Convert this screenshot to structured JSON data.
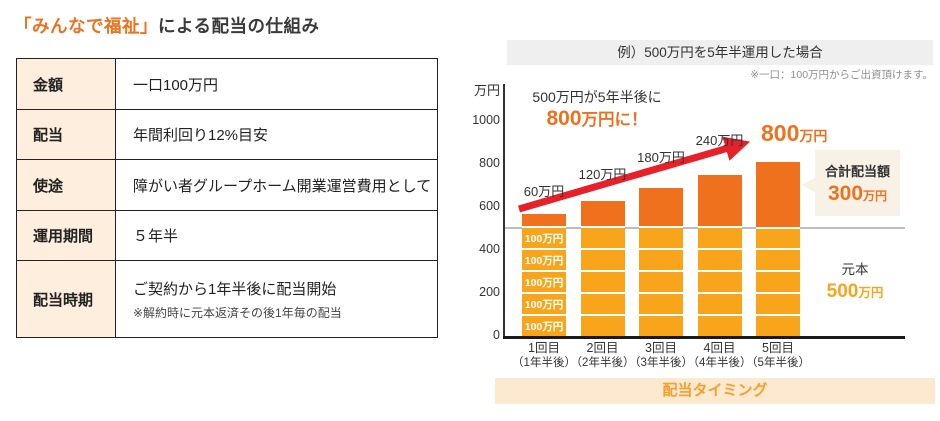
{
  "page": {
    "title_highlight": "「みんなで福祉」",
    "title_rest": "による配当の仕組み"
  },
  "table": {
    "rows": [
      {
        "label": "金額",
        "value": "一口100万円"
      },
      {
        "label": "配当",
        "value": "年間利回り12%目安"
      },
      {
        "label": "使途",
        "value": "障がい者グループホーム開業運営費用として"
      },
      {
        "label": "運用期間",
        "value": "５年半"
      },
      {
        "label": "配当時期",
        "value": "ご契約から1年半後に配当開始",
        "note": "※解約時に元本返済その後1年毎の配当"
      }
    ]
  },
  "chart": {
    "header": "例）500万円を5年半運用した場合",
    "note": "※一口：100万円からご出資頂けます。",
    "annotation_line1": "500万円が5年半後に",
    "annotation_line2_num": "800",
    "annotation_line2_rest": "万円に！",
    "y_axis_unit": "万円",
    "final_label_num": "800",
    "final_label_unit": "万円",
    "segment_label": "100万円",
    "callout": {
      "title": "合計配当額",
      "value_num": "300",
      "value_unit": "万円"
    },
    "principal": {
      "label": "元本",
      "value_num": "500",
      "value_unit": "万円"
    },
    "footer": "配当タイミング"
  },
  "chart_data": {
    "type": "bar",
    "stacked": true,
    "title": "例）500万円を5年半運用した場合",
    "categories": [
      "1回目",
      "2回目",
      "3回目",
      "4回目",
      "5回目"
    ],
    "categories_sub": [
      "（1年半後）",
      "（2年半後）",
      "（3年半後）",
      "（4年半後）",
      "（5年半後）"
    ],
    "series": [
      {
        "name": "元本",
        "values": [
          500,
          500,
          500,
          500,
          500
        ],
        "color": "#f9a51c"
      },
      {
        "name": "配当",
        "values": [
          60,
          120,
          180,
          240,
          300
        ],
        "color": "#f0711d"
      }
    ],
    "totals": [
      560,
      620,
      680,
      740,
      800
    ],
    "bar_labels": [
      "60万円",
      "120万円",
      "180万円",
      "240万円",
      "800万円"
    ],
    "principal_segments_per_bar": 5,
    "principal_segment_value": 100,
    "y_ticks": [
      0,
      200,
      400,
      600,
      800,
      1000
    ],
    "ylim": [
      0,
      1000
    ],
    "ylabel": "万円",
    "reference_line": 500,
    "xlabel": "配当タイミング",
    "legend": false,
    "grid": false
  },
  "colors": {
    "orange": "#f0711d",
    "amber": "#f9a51c",
    "red": "#e62129",
    "text-dark": "#333333",
    "cream": "#f8f2e6",
    "table-label-bg": "#fdeedd",
    "footer-bg": "#fce9cf",
    "footer-text": "#f5a02c",
    "header-bg": "#efefef",
    "note-gray": "#8f8f8f",
    "ref-line": "#bdbdbd"
  }
}
